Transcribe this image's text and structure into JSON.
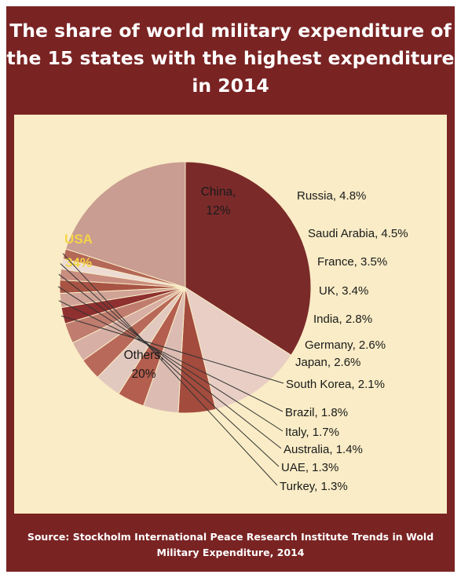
{
  "chart_data": {
    "type": "pie",
    "title": "The share of world military expenditure of the 15 states with the highest expenditure in 2014",
    "source": "Source: Stockholm International Peace Research Institute Trends in Wold Military Expenditure, 2014",
    "unit": "%",
    "slices": [
      {
        "label": "USA",
        "value": 34,
        "text": "USA",
        "pct_text": "34%",
        "color": "#7b2a2a"
      },
      {
        "label": "China",
        "value": 12,
        "text": "China,",
        "pct_text": "12%",
        "color": "#e8cec4"
      },
      {
        "label": "Russia",
        "value": 4.8,
        "text": "Russia, 4.8%",
        "color": "#a34b3d"
      },
      {
        "label": "Saudi Arabia",
        "value": 4.5,
        "text": "Saudi Arabia, 4.5%",
        "color": "#dcbcb2"
      },
      {
        "label": "France",
        "value": 3.5,
        "text": "France, 3.5%",
        "color": "#b35e4e"
      },
      {
        "label": "UK",
        "value": 3.4,
        "text": "UK, 3.4%",
        "color": "#e2c9bf"
      },
      {
        "label": "India",
        "value": 2.8,
        "text": "India, 2.8%",
        "color": "#b8695a"
      },
      {
        "label": "Germany",
        "value": 2.6,
        "text": "Germany, 2.6%",
        "color": "#d7afa4"
      },
      {
        "label": "Japan",
        "value": 2.6,
        "text": "Japan, 2.6%",
        "color": "#c07c6e"
      },
      {
        "label": "South Korea",
        "value": 2.1,
        "text": "South Korea, 2.1%",
        "color": "#8e3030"
      },
      {
        "label": "Brazil",
        "value": 1.8,
        "text": "Brazil, 1.8%",
        "color": "#d1a396"
      },
      {
        "label": "Italy",
        "value": 1.7,
        "text": "Italy, 1.7%",
        "color": "#a85444"
      },
      {
        "label": "Australia",
        "value": 1.4,
        "text": "Australia, 1.4%",
        "color": "#c98e80"
      },
      {
        "label": "UAE",
        "value": 1.3,
        "text": "UAE, 1.3%",
        "color": "#eddcd4"
      },
      {
        "label": "Turkey",
        "value": 1.3,
        "text": "Turkey, 1.3%",
        "color": "#b46858"
      },
      {
        "label": "Others",
        "value": 20,
        "text": "Others,",
        "pct_text": "20%",
        "color": "#c99d91"
      }
    ],
    "colors": {
      "frame": "#7a2323",
      "background": "#f9ecc6",
      "usa_label": "#f5d547",
      "label_text": "#1a1a1a"
    }
  }
}
